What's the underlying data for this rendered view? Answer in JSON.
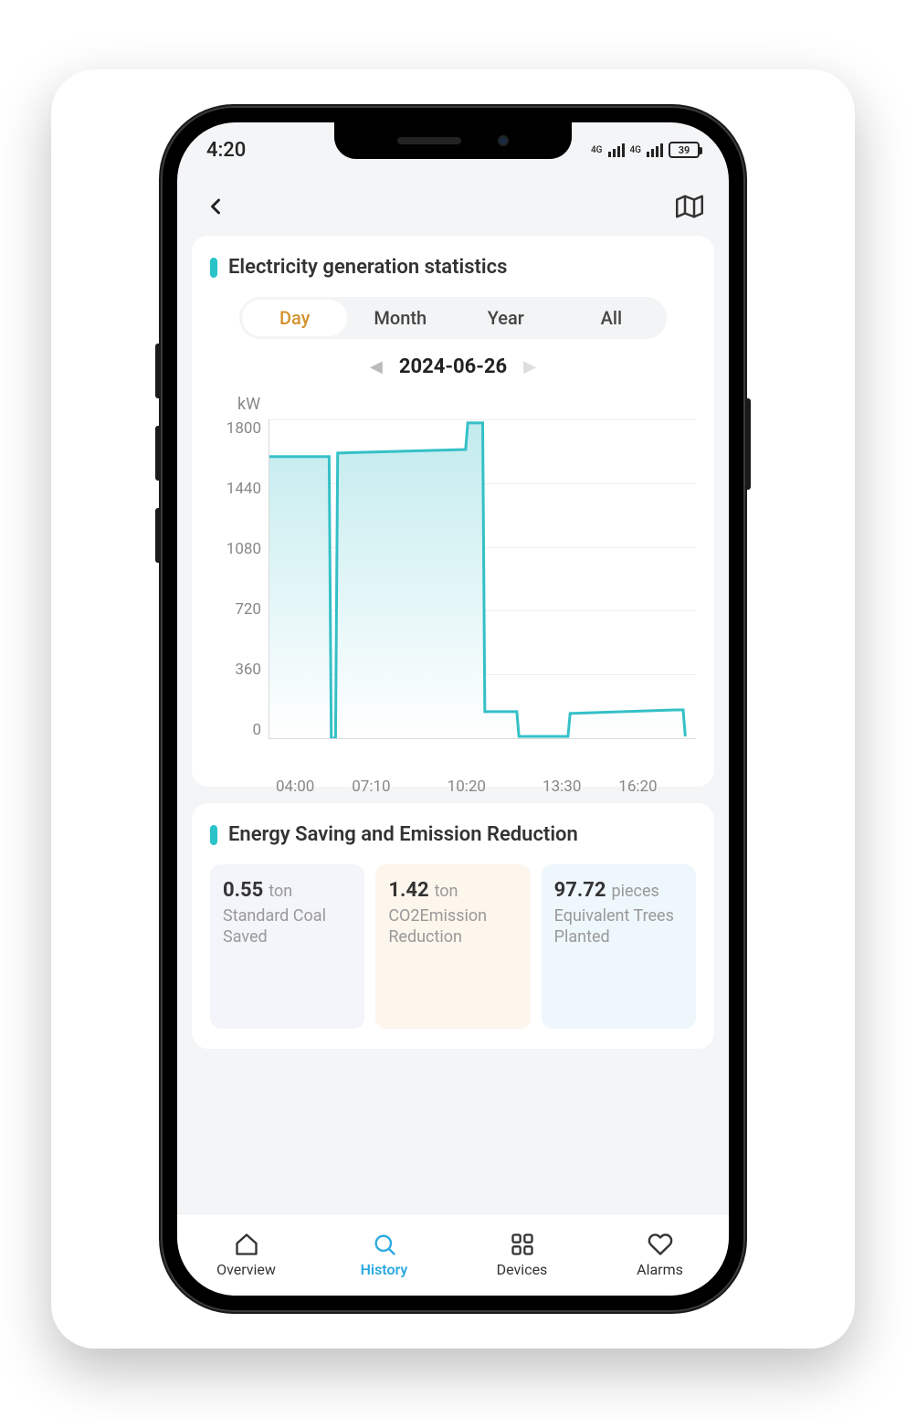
{
  "statusbar": {
    "time": "4:20",
    "network_label_1": "4G",
    "network_label_2": "4G",
    "battery_pct": "39"
  },
  "header": {
    "back_icon": "chevron-left",
    "map_icon": "map"
  },
  "stats_card": {
    "title": "Electricity generation statistics",
    "accent_color": "#29c3c9",
    "periods": [
      "Day",
      "Month",
      "Year",
      "All"
    ],
    "active_period_index": 0,
    "active_period_color": "#d4932e",
    "date": "2024-06-26"
  },
  "chart": {
    "type": "area",
    "y_unit": "kW",
    "ylim": [
      0,
      1800
    ],
    "y_ticks": [
      1800,
      1440,
      1080,
      720,
      360,
      0
    ],
    "x_ticks": [
      "04:00",
      "07:10",
      "10:20",
      "13:30",
      "16:20"
    ],
    "line_color": "#34c0c7",
    "line_width": 3,
    "area_gradient_top": "#c2ebee",
    "area_gradient_bottom": "#ffffff",
    "grid_color": "#eceef0",
    "axis_color": "#d7d9db",
    "label_color": "#888888",
    "label_fontsize": 17,
    "data": [
      {
        "x": 0.0,
        "y": 1590
      },
      {
        "x": 0.14,
        "y": 1590
      },
      {
        "x": 0.145,
        "y": 0
      },
      {
        "x": 0.155,
        "y": 0
      },
      {
        "x": 0.16,
        "y": 1610
      },
      {
        "x": 0.46,
        "y": 1630
      },
      {
        "x": 0.465,
        "y": 1780
      },
      {
        "x": 0.5,
        "y": 1780
      },
      {
        "x": 0.505,
        "y": 150
      },
      {
        "x": 0.58,
        "y": 150
      },
      {
        "x": 0.585,
        "y": 10
      },
      {
        "x": 0.7,
        "y": 10
      },
      {
        "x": 0.705,
        "y": 140
      },
      {
        "x": 0.95,
        "y": 160
      },
      {
        "x": 0.97,
        "y": 160
      },
      {
        "x": 0.975,
        "y": 10
      }
    ]
  },
  "savings_card": {
    "title": "Energy Saving and Emission Reduction",
    "accent_color": "#29c3c9",
    "items": [
      {
        "value": "0.55",
        "unit": "ton",
        "label": "Standard Coal Saved",
        "bg": "#f3f5fa"
      },
      {
        "value": "1.42",
        "unit": "ton",
        "label": "CO2Emission Reduction",
        "bg": "#fdf6ec"
      },
      {
        "value": "97.72",
        "unit": "pieces",
        "label": "Equivalent Trees Planted",
        "bg": "#eef7fb"
      }
    ]
  },
  "bottom_nav": {
    "items": [
      {
        "label": "Overview",
        "icon": "home"
      },
      {
        "label": "History",
        "icon": "search"
      },
      {
        "label": "Devices",
        "icon": "grid"
      },
      {
        "label": "Alarms",
        "icon": "heart"
      }
    ],
    "active_index": 1,
    "active_color": "#2aa9e0",
    "inactive_color": "#333333"
  }
}
